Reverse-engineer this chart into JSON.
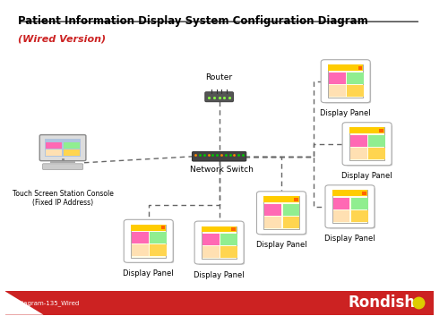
{
  "title_line1": "Patient Information Display System Configuration Diagram",
  "title_line2": "(Wired Version)",
  "bg_color": "#ffffff",
  "footer_text": "Diagram-135_Wired",
  "footer_bar_color": "#cc2222",
  "rondish_red": "#cc2222",
  "dashed_line_color": "#666666"
}
